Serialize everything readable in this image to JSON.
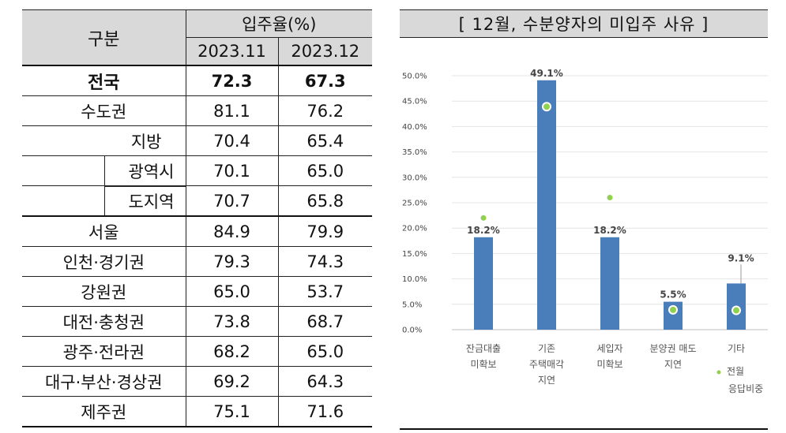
{
  "table": {
    "header_region": "구분",
    "header_rate": "입주율(%)",
    "periods": [
      "2023.11",
      "2023.12"
    ],
    "rows": [
      {
        "label": "전국",
        "v1": "72.3",
        "v2": "67.3"
      },
      {
        "label": "수도권",
        "v1": "81.1",
        "v2": "76.2"
      },
      {
        "label": "지방",
        "v1": "70.4",
        "v2": "65.4"
      },
      {
        "label": "광역시",
        "v1": "70.1",
        "v2": "65.0"
      },
      {
        "label": "도지역",
        "v1": "70.7",
        "v2": "65.8"
      },
      {
        "label": "서울",
        "v1": "84.9",
        "v2": "79.9"
      },
      {
        "label": "인천·경기권",
        "v1": "79.3",
        "v2": "74.3"
      },
      {
        "label": "강원권",
        "v1": "65.0",
        "v2": "53.7"
      },
      {
        "label": "대전·충청권",
        "v1": "73.8",
        "v2": "68.7"
      },
      {
        "label": "광주·전라권",
        "v1": "68.2",
        "v2": "65.0"
      },
      {
        "label": "대구·부산·경상권",
        "v1": "69.2",
        "v2": "64.3"
      },
      {
        "label": "제주권",
        "v1": "75.1",
        "v2": "71.6"
      }
    ]
  },
  "chart_data": {
    "type": "bar",
    "title": "[ 12월, 수분양자의 미입주 사유 ]",
    "categories": [
      [
        "잔금대출",
        "미확보"
      ],
      [
        "기존",
        "주택매각",
        "지연"
      ],
      [
        "세입자",
        "미확보"
      ],
      [
        "분양권 매도",
        "지연"
      ],
      [
        "기타"
      ]
    ],
    "series": [
      {
        "values": [
          18.2,
          49.1,
          18.2,
          5.5,
          9.1
        ],
        "data_labels": [
          "18.2%",
          "49.1%",
          "18.2%",
          "5.5%",
          "9.1%"
        ]
      },
      {
        "name": "전월 응답비중",
        "type": "scatter",
        "values": [
          22.0,
          43.9,
          26.0,
          3.9,
          3.8
        ]
      }
    ],
    "ylim": [
      0,
      50
    ],
    "yticks": [
      "0.0%",
      "5.0%",
      "10.0%",
      "15.0%",
      "20.0%",
      "25.0%",
      "30.0%",
      "35.0%",
      "40.0%",
      "45.0%",
      "50.0%"
    ],
    "grid": true,
    "legend": {
      "position": "bottom-right",
      "label_lines": [
        "전월",
        "응답비중"
      ]
    },
    "colors": {
      "bar": "#4a7ebb",
      "dot": "#92d050"
    }
  }
}
